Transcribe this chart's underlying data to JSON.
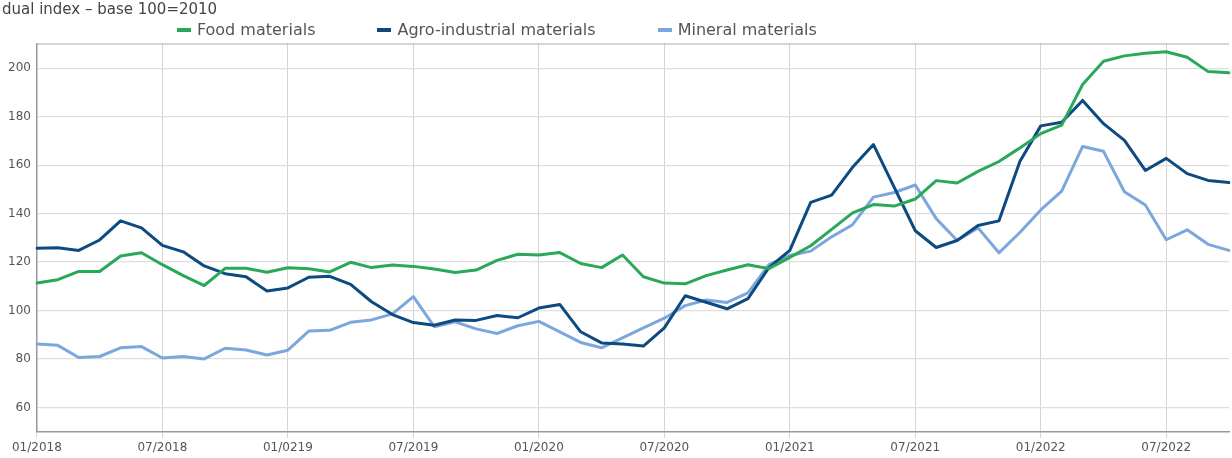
{
  "chart_data": {
    "type": "line",
    "title": "dual index – base 100=2010",
    "categories": [
      "01/2018",
      null,
      null,
      null,
      null,
      null,
      "07/2018",
      null,
      null,
      null,
      null,
      null,
      "01/0219",
      null,
      null,
      null,
      null,
      null,
      "07/2019",
      null,
      null,
      null,
      null,
      null,
      "01/2020",
      null,
      null,
      null,
      null,
      null,
      "07/2020",
      null,
      null,
      null,
      null,
      null,
      "01/2021",
      null,
      null,
      null,
      null,
      null,
      "07/2021",
      null,
      null,
      null,
      null,
      null,
      "01/2022",
      null,
      null,
      null,
      null,
      null,
      "07/2022",
      null,
      null,
      null
    ],
    "series": [
      {
        "name": "Food materials",
        "color": "#2aa85a",
        "values": [
          111.3,
          112.7,
          116.1,
          116.1,
          122.5,
          123.8,
          118.9,
          114.4,
          110.3,
          117.4,
          117.4,
          115.8,
          117.6,
          117.2,
          115.9,
          119.9,
          117.7,
          118.8,
          118.2,
          117.1,
          115.7,
          116.7,
          120.7,
          123.2,
          122.9,
          123.9,
          119.4,
          117.7,
          122.9,
          113.9,
          111.3,
          111.0,
          114.4,
          116.7,
          118.9,
          117.3,
          121.9,
          126.7,
          133.5,
          140.3,
          143.7,
          143.1,
          146.0,
          153.6,
          152.6,
          157.4,
          161.5,
          167.1,
          173.0,
          176.5,
          193.3,
          202.9,
          205.1,
          206.2,
          206.8,
          204.5,
          198.6,
          198.1
        ]
      },
      {
        "name": "Agro-industrial materials",
        "color": "#0d4a80",
        "values": [
          125.7,
          125.9,
          124.8,
          129.1,
          137.0,
          134.1,
          126.9,
          124.2,
          118.4,
          115.2,
          113.9,
          108.0,
          109.3,
          113.7,
          114.1,
          110.8,
          103.6,
          98.3,
          95.0,
          93.9,
          96.1,
          95.9,
          97.9,
          97.0,
          101.0,
          102.5,
          91.2,
          86.6,
          86.2,
          85.3,
          92.8,
          106.1,
          103.4,
          100.7,
          104.9,
          117.7,
          124.8,
          144.6,
          147.6,
          159.1,
          168.5,
          150.7,
          132.9,
          126.0,
          128.9,
          135.1,
          137.0,
          161.5,
          176.2,
          177.7,
          186.7,
          177.1,
          170.2,
          157.8,
          162.8,
          156.5,
          153.7,
          152.8
        ]
      },
      {
        "name": "Mineral materials",
        "color": "#7ba7dc",
        "values": [
          86.2,
          85.6,
          80.6,
          81.0,
          84.6,
          85.1,
          80.4,
          81.0,
          80.0,
          84.4,
          83.7,
          81.6,
          83.6,
          91.5,
          91.8,
          95.1,
          96.1,
          98.6,
          105.7,
          93.3,
          95.3,
          92.4,
          90.5,
          93.7,
          95.5,
          91.2,
          86.8,
          84.6,
          88.7,
          92.8,
          96.8,
          102.0,
          104.3,
          103.3,
          107.3,
          118.9,
          122.7,
          124.5,
          130.4,
          135.4,
          146.8,
          148.7,
          151.8,
          137.9,
          128.9,
          134.1,
          123.8,
          132.2,
          141.5,
          149.3,
          167.7,
          165.7,
          149.0,
          143.5,
          129.2,
          133.3,
          127.3,
          124.8
        ]
      }
    ],
    "ylim": [
      50,
      210
    ],
    "yticks": [
      60,
      80,
      100,
      120,
      140,
      160,
      180,
      200
    ],
    "grid": true,
    "legend": "top",
    "marker": "none",
    "line_style": "solid"
  }
}
